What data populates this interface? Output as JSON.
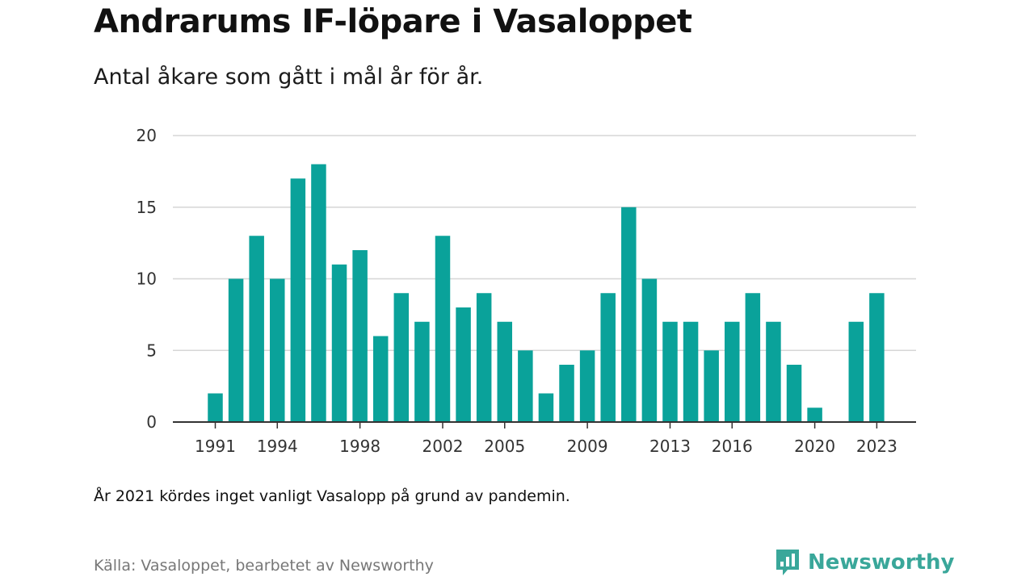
{
  "header": {
    "title": "Andrarums IF-löpare i Vasaloppet",
    "subtitle": "Antal åkare som gått i mål år för år."
  },
  "footer": {
    "note": "År 2021 kördes inget vanligt Vasalopp på grund av pandemin.",
    "source": "Källa: Vasaloppet, bearbetet av Newsworthy",
    "brand": "Newsworthy"
  },
  "colors": {
    "bar": "#0aa29a",
    "gridline": "#d6d6d6",
    "baseline": "#333333",
    "brand": "#3aa79a"
  },
  "icons": {
    "brand_logo": "bar-chart-speech-bubble-icon"
  },
  "chart_data": {
    "type": "bar",
    "title": "Andrarums IF-löpare i Vasaloppet",
    "subtitle": "Antal åkare som gått i mål år för år.",
    "xlabel": "",
    "ylabel": "",
    "categories": [
      1991,
      1992,
      1993,
      1994,
      1995,
      1996,
      1997,
      1998,
      1999,
      2000,
      2001,
      2002,
      2003,
      2004,
      2005,
      2006,
      2007,
      2008,
      2009,
      2010,
      2011,
      2012,
      2013,
      2014,
      2015,
      2016,
      2017,
      2018,
      2019,
      2020,
      2021,
      2022,
      2023
    ],
    "values": [
      2,
      10,
      13,
      10,
      17,
      18,
      11,
      12,
      6,
      9,
      7,
      13,
      8,
      9,
      7,
      5,
      2,
      4,
      5,
      9,
      15,
      10,
      7,
      7,
      5,
      7,
      9,
      7,
      4,
      1,
      null,
      7,
      9
    ],
    "x_tick_labels": [
      "1991",
      "1994",
      "1998",
      "2002",
      "2005",
      "2009",
      "2013",
      "2016",
      "2020",
      "2023"
    ],
    "y_tick_labels": [
      "0",
      "5",
      "10",
      "15",
      "20"
    ],
    "y_ticks": [
      0,
      5,
      10,
      15,
      20
    ],
    "ylim": [
      0,
      20
    ],
    "grid": true,
    "legend": "none"
  }
}
